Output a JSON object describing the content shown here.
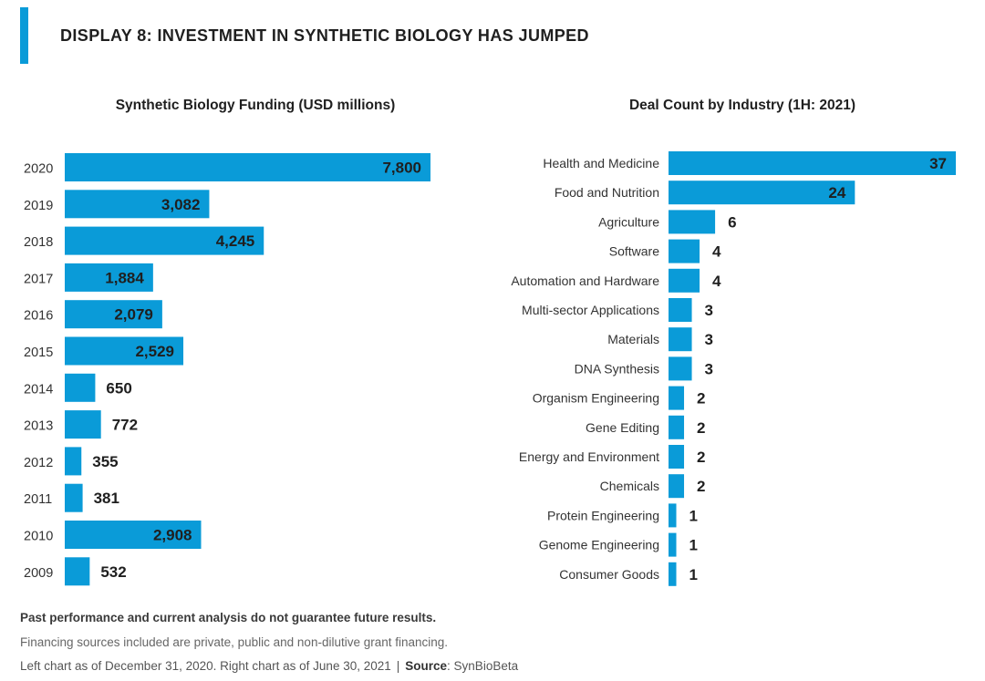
{
  "header": {
    "title": "DISPLAY 8: INVESTMENT IN SYNTHETIC BIOLOGY HAS JUMPED",
    "accent_color": "#0a9bd8"
  },
  "chart_data": [
    {
      "type": "bar",
      "orientation": "horizontal",
      "title": "Synthetic Biology Funding (USD millions)",
      "categories": [
        "2020",
        "2019",
        "2018",
        "2017",
        "2016",
        "2015",
        "2014",
        "2013",
        "2012",
        "2011",
        "2010",
        "2009"
      ],
      "values": [
        7800,
        3082,
        4245,
        1884,
        2079,
        2529,
        650,
        772,
        355,
        381,
        2908,
        532
      ],
      "labels": [
        "7,800",
        "3,082",
        "4,245",
        "1,884",
        "2,079",
        "2,529",
        "650",
        "772",
        "355",
        "381",
        "2,908",
        "532"
      ],
      "xlim": [
        0,
        7800
      ],
      "bar_color": "#0a9bd8",
      "grid": false,
      "legend": "none"
    },
    {
      "type": "bar",
      "orientation": "horizontal",
      "title": "Deal Count by Industry (1H: 2021)",
      "categories": [
        "Health and Medicine",
        "Food and Nutrition",
        "Agriculture",
        "Software",
        "Automation and Hardware",
        "Multi-sector Applications",
        "Materials",
        "DNA Synthesis",
        "Organism Engineering",
        "Gene Editing",
        "Energy and Environment",
        "Chemicals",
        "Protein Engineering",
        "Genome Engineering",
        "Consumer Goods"
      ],
      "values": [
        37,
        24,
        6,
        4,
        4,
        3,
        3,
        3,
        2,
        2,
        2,
        2,
        1,
        1,
        1
      ],
      "xlim": [
        0,
        37
      ],
      "bar_color": "#0a9bd8",
      "grid": false,
      "legend": "none"
    }
  ],
  "footer": {
    "disclaimer": "Past performance and current analysis do not guarantee future results.",
    "financing_note": "Financing sources included are private, public and non-dilutive grant financing.",
    "as_of": "Left chart as of December 31, 2020. Right chart as of June 30, 2021",
    "separator": "|",
    "source_label": "Source",
    "source_value": ": SynBioBeta"
  }
}
